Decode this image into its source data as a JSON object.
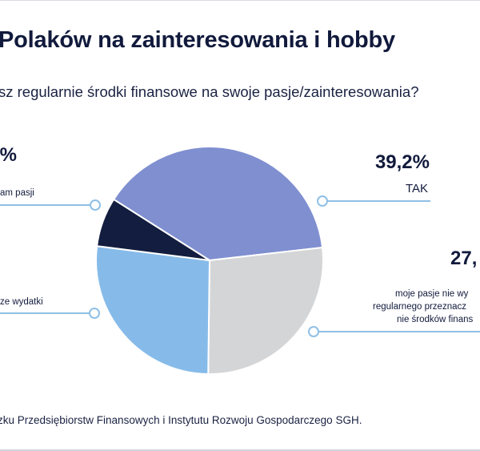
{
  "header": {
    "title": "Polaków na zainteresowania i hobby",
    "subtitle": "sz regularnie środki finansowe na swoje pasje/zainteresowania?"
  },
  "footer": {
    "source": "zku Przedsiębiorstw Finansowych i Instytutu Rozwoju Gospodarczego SGH."
  },
  "colors": {
    "tak": "#7f8fd0",
    "nie_srodkow": "#d4d5d7",
    "wydatki": "#86bbe9",
    "brak_pasji": "#121d3f",
    "leader": "#8fc0e6"
  },
  "chart_data": {
    "type": "pie",
    "slices": [
      {
        "name": "TAK",
        "value": 39.2,
        "value_label": "39,2%",
        "label": "TAK",
        "color": "#7f8fd0"
      },
      {
        "name": "nie_srodkow",
        "value": 27.0,
        "value_label": "27,",
        "label_lines": [
          "moje pasje nie wy",
          "regularnego przeznacz",
          "nie środków finans"
        ],
        "color": "#d4d5d7"
      },
      {
        "name": "wydatki",
        "value": 26.8,
        "label_lines": [
          "ze wydatki"
        ],
        "color": "#86bbe9"
      },
      {
        "name": "brak_pasji",
        "value": 7.0,
        "value_label": ".%",
        "label_lines": [
          "am pasji"
        ],
        "color": "#121d3f"
      }
    ]
  }
}
